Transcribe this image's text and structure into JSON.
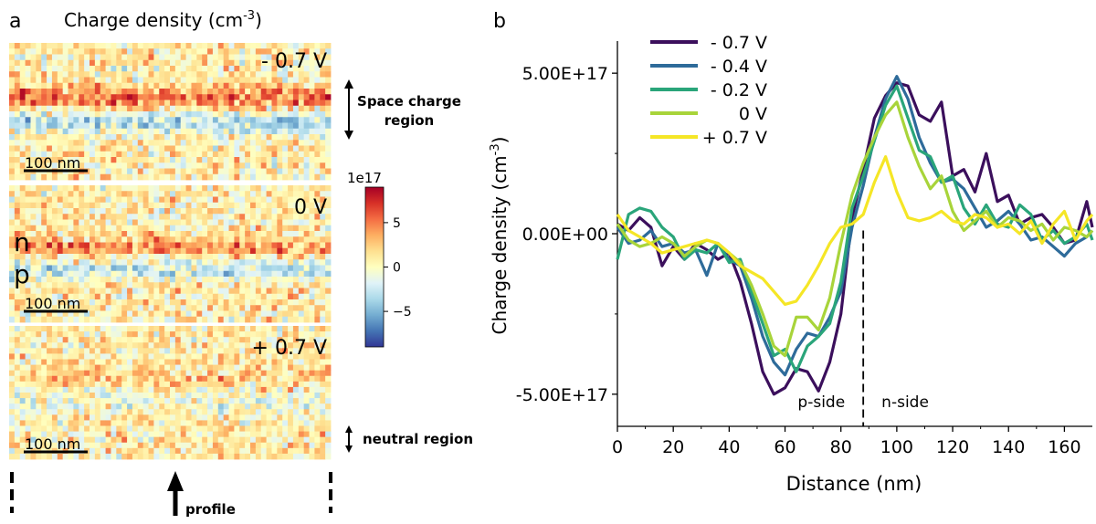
{
  "panel_a": {
    "letter": "a",
    "title_main": "Charge density (cm",
    "title_exp": "-3",
    "title_close": ")",
    "maps": [
      {
        "voltage_label": "- 0.7 V",
        "scale_bar": "100 nm",
        "profile": "reverse"
      },
      {
        "voltage_label": "0 V",
        "scale_bar": "100 nm",
        "profile": "zero"
      },
      {
        "voltage_label": "+ 0.7 V",
        "scale_bar": "100 nm",
        "profile": "forward"
      }
    ],
    "n_label": "n",
    "p_label": "p",
    "colorbar": {
      "title": "1e17",
      "ticks": [
        {
          "value": 5,
          "label": "5"
        },
        {
          "value": 0,
          "label": "0"
        },
        {
          "value": -5,
          "label": "−5"
        }
      ],
      "range": [
        -9,
        9
      ],
      "colormap": "RdYlBu_r"
    },
    "annotations": {
      "space_charge_1": "Space charge",
      "space_charge_2": "region",
      "neutral": "neutral region",
      "profile": "profile"
    }
  },
  "chart_data": {
    "type": "line",
    "panel_letter": "b",
    "xlabel": "Distance (nm)",
    "ylabel_main": "Charge density (cm",
    "ylabel_exp": "-3",
    "ylabel_close": ")",
    "xlim": [
      0,
      170
    ],
    "ylim": [
      -6e+17,
      6e+17
    ],
    "xticks": [
      0,
      20,
      40,
      60,
      80,
      100,
      120,
      140,
      160
    ],
    "yticks": [
      {
        "value": 5e+17,
        "label": "5.00E+17"
      },
      {
        "value": 0,
        "label": "0.00E+00"
      },
      {
        "value": -5e+17,
        "label": "-5.00E+17"
      }
    ],
    "legend_position": "top-left",
    "divider_x": 88,
    "region_labels": [
      {
        "text": "p-side",
        "x": 73,
        "y": -5.4e+17
      },
      {
        "text": "n-side",
        "x": 103,
        "y": -5.4e+17
      }
    ],
    "series": [
      {
        "name": "- 0.7 V",
        "color": "#3b0f5c",
        "x": [
          0,
          4,
          8,
          12,
          16,
          20,
          24,
          28,
          32,
          36,
          40,
          44,
          48,
          52,
          56,
          60,
          64,
          68,
          72,
          76,
          80,
          84,
          88,
          92,
          96,
          100,
          104,
          108,
          112,
          116,
          120,
          124,
          128,
          132,
          136,
          140,
          144,
          148,
          152,
          156,
          160,
          164,
          168,
          170
        ],
        "y": [
          3e+16,
          1e+16,
          5e+16,
          2e+16,
          -1e+17,
          -4e+16,
          -8e+16,
          -3e+16,
          -5e+16,
          -8e+16,
          -6e+16,
          -1.5e+17,
          -2.8e+17,
          -4.3e+17,
          -5e+17,
          -4.8e+17,
          -4.2e+17,
          -4.3e+17,
          -4.9e+17,
          -4e+17,
          -2.5e+17,
          5e+16,
          2e+17,
          3.6e+17,
          4.3e+17,
          4.7e+17,
          4.6e+17,
          3.7e+17,
          3.5e+17,
          4.1e+17,
          1.8e+17,
          2e+17,
          1.3e+17,
          2.5e+17,
          1e+17,
          1.2e+17,
          3e+16,
          5e+16,
          6e+16,
          2e+16,
          -3e+16,
          -2e+16,
          1e+17,
          2e+16
        ]
      },
      {
        "name": "- 0.4 V",
        "color": "#2e6b9a",
        "x": [
          0,
          4,
          8,
          12,
          16,
          20,
          24,
          28,
          32,
          36,
          40,
          44,
          48,
          52,
          56,
          60,
          64,
          68,
          72,
          76,
          80,
          84,
          88,
          92,
          96,
          100,
          104,
          108,
          112,
          116,
          120,
          124,
          128,
          132,
          136,
          140,
          144,
          148,
          152,
          156,
          160,
          164,
          168,
          170
        ],
        "y": [
          2e+16,
          -3e+16,
          -2e+16,
          1e+16,
          -4e+16,
          -3e+16,
          -6e+16,
          -5e+16,
          -1.3e+17,
          -3e+16,
          -8e+16,
          -1e+17,
          -2e+17,
          -3.2e+17,
          -4e+17,
          -4.4e+17,
          -3.6e+17,
          -3.1e+17,
          -3.2e+17,
          -2.6e+17,
          -1.8e+17,
          2e+16,
          1.5e+17,
          3e+17,
          4.2e+17,
          4.9e+17,
          4.2e+17,
          3e+17,
          2.2e+17,
          1.6e+17,
          1.7e+17,
          1.4e+17,
          8e+16,
          2e+16,
          4e+16,
          7e+16,
          3e+16,
          -2e+16,
          -1e+16,
          -4e+16,
          -7e+16,
          -3e+16,
          -1e+16,
          1e+16
        ]
      },
      {
        "name": "- 0.2 V",
        "color": "#2aa57a",
        "x": [
          0,
          4,
          8,
          12,
          16,
          20,
          24,
          28,
          32,
          36,
          40,
          44,
          48,
          52,
          56,
          60,
          64,
          68,
          72,
          76,
          80,
          84,
          88,
          92,
          96,
          100,
          104,
          108,
          112,
          116,
          120,
          124,
          128,
          132,
          136,
          140,
          144,
          148,
          152,
          156,
          160,
          164,
          168,
          170
        ],
        "y": [
          -8e+16,
          6e+16,
          8e+16,
          7e+16,
          2e+16,
          -1e+16,
          -8e+16,
          -5e+16,
          -6e+16,
          -3e+16,
          -9e+16,
          -8e+16,
          -1.8e+17,
          -2.8e+17,
          -3.8e+17,
          -3.6e+17,
          -4.3e+17,
          -3.5e+17,
          -3.2e+17,
          -2.8e+17,
          -1.5e+17,
          8e+16,
          1.8e+17,
          2.9e+17,
          4e+17,
          4.6e+17,
          3.6e+17,
          2.6e+17,
          2.4e+17,
          1.6e+17,
          1.8e+17,
          8e+16,
          3e+16,
          9e+16,
          3e+16,
          2e+16,
          9e+16,
          6e+16,
          -2e+16,
          1e+16,
          -3e+16,
          -1e+16,
          3e+16,
          -2e+16
        ]
      },
      {
        "name": "0 V",
        "color": "#a8d43a",
        "x": [
          0,
          4,
          8,
          12,
          16,
          20,
          24,
          28,
          32,
          36,
          40,
          44,
          48,
          52,
          56,
          60,
          64,
          68,
          72,
          76,
          80,
          84,
          88,
          92,
          96,
          100,
          104,
          108,
          112,
          116,
          120,
          124,
          128,
          132,
          136,
          140,
          144,
          148,
          152,
          156,
          160,
          164,
          168,
          170
        ],
        "y": [
          3e+16,
          -2e+16,
          -4e+16,
          -3e+16,
          -1e+16,
          -3e+16,
          -7e+16,
          -4e+16,
          -2e+16,
          -3e+16,
          -6e+16,
          -9e+16,
          -1.6e+17,
          -2.5e+17,
          -3.5e+17,
          -3.8e+17,
          -2.6e+17,
          -2.6e+17,
          -3e+17,
          -2e+17,
          -3e+16,
          1.2e+17,
          2.2e+17,
          3e+17,
          3.7e+17,
          4.1e+17,
          3e+17,
          2.1e+17,
          1.4e+17,
          1.8e+17,
          7e+16,
          1e+16,
          4e+16,
          7e+16,
          2e+16,
          5e+16,
          4e+16,
          1e+16,
          3e+16,
          -2e+16,
          2e+16,
          1e+16,
          -1e+16,
          1e+16
        ]
      },
      {
        "name": "+ 0.7 V",
        "color": "#f5e626",
        "x": [
          0,
          4,
          8,
          12,
          16,
          20,
          24,
          28,
          32,
          36,
          40,
          44,
          48,
          52,
          56,
          60,
          64,
          68,
          72,
          76,
          80,
          84,
          88,
          92,
          96,
          100,
          104,
          108,
          112,
          116,
          120,
          124,
          128,
          132,
          136,
          140,
          144,
          148,
          152,
          156,
          160,
          164,
          168,
          170
        ],
        "y": [
          6e+16,
          1e+16,
          -1e+16,
          -3e+16,
          -6e+16,
          -5e+16,
          -4e+16,
          -3e+16,
          -2e+16,
          -3e+16,
          -6e+16,
          -1e+17,
          -1.2e+17,
          -1.4e+17,
          -1.8e+17,
          -2.2e+17,
          -2.1e+17,
          -1.6e+17,
          -1e+17,
          -3e+16,
          2e+16,
          3e+16,
          6e+16,
          1.6e+17,
          2.4e+17,
          1.3e+17,
          5e+16,
          4e+16,
          5e+16,
          7e+16,
          4e+16,
          3e+16,
          6e+16,
          5e+16,
          2e+16,
          3e+16,
          0.0,
          4e+16,
          -3e+16,
          3e+16,
          7e+16,
          -2e+16,
          4e+16,
          6e+16
        ]
      }
    ]
  }
}
